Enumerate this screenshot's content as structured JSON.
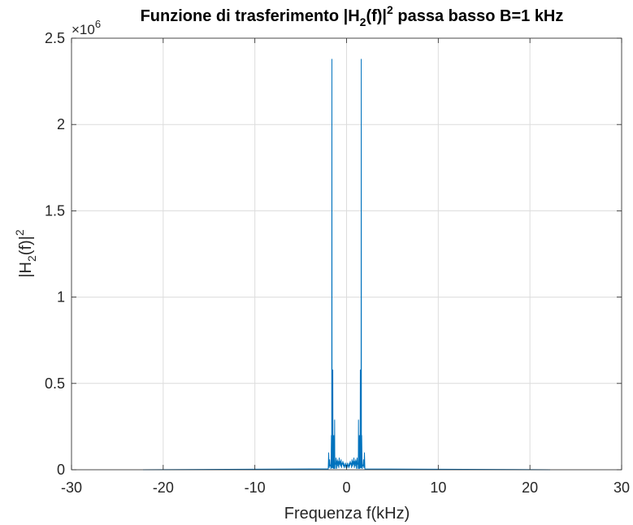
{
  "chart_data": {
    "type": "line",
    "title": {
      "prefix": "Funzione di trasferimento |H",
      "sub": "2",
      "middle": "(f)|",
      "sup": "2",
      "suffix": " passa basso B=1 kHz"
    },
    "xlabel": "Frequenza f(kHz)",
    "ylabel": {
      "prefix": "|H",
      "sub": "2",
      "middle": "(f)|",
      "sup": "2"
    },
    "xlim": [
      -30,
      30
    ],
    "ylim": [
      0,
      2500000
    ],
    "x_ticks": [
      -30,
      -20,
      -10,
      0,
      10,
      20,
      30
    ],
    "x_tick_labels": [
      "-30",
      "-20",
      "-10",
      "0",
      "10",
      "20",
      "30"
    ],
    "y_ticks": [
      0,
      500000,
      1000000,
      1500000,
      2000000,
      2500000
    ],
    "y_tick_labels": [
      "0",
      "0.5",
      "1",
      "1.5",
      "2",
      "2.5"
    ],
    "y_exponent": {
      "base": "×10",
      "power": "6"
    },
    "grid": true,
    "line_color": "#0072bd",
    "series": [
      {
        "x": [
          -22.2,
          -2.0,
          -1.95,
          -1.9,
          -1.85,
          -1.8,
          -1.75,
          -1.7,
          -1.65,
          -1.62,
          -1.6,
          -1.58,
          -1.55,
          -1.52,
          -1.5,
          -1.48,
          -1.45,
          -1.42,
          -1.4,
          -1.38,
          -1.35,
          -1.32,
          -1.3,
          -1.28,
          -1.25,
          -1.2,
          -1.15,
          -1.12,
          -1.1,
          -1.08,
          -1.05,
          -1.0,
          -0.95,
          -0.9,
          -0.85,
          -0.8,
          -0.75,
          -0.7,
          -0.65,
          -0.6,
          -0.55,
          -0.5,
          -0.45,
          -0.4,
          -0.35,
          -0.3,
          -0.25,
          -0.2,
          -0.15,
          -0.1,
          -0.05,
          0.0,
          0.05,
          0.1,
          0.15,
          0.2,
          0.25,
          0.3,
          0.35,
          0.4,
          0.45,
          0.5,
          0.55,
          0.6,
          0.65,
          0.7,
          0.75,
          0.8,
          0.85,
          0.9,
          0.95,
          1.0,
          1.05,
          1.08,
          1.1,
          1.12,
          1.15,
          1.2,
          1.25,
          1.28,
          1.3,
          1.32,
          1.35,
          1.38,
          1.4,
          1.42,
          1.45,
          1.48,
          1.5,
          1.52,
          1.55,
          1.58,
          1.6,
          1.62,
          1.65,
          1.7,
          1.75,
          1.8,
          1.85,
          1.9,
          1.95,
          2.0,
          22.2
        ],
        "y": [
          0,
          5000,
          100000,
          10000,
          60000,
          20000,
          30000,
          5000,
          200000,
          10000,
          2380000,
          15000,
          60000,
          8000,
          580000,
          12000,
          40000,
          6000,
          200000,
          9000,
          20000,
          5000,
          290000,
          7000,
          40000,
          30000,
          70000,
          5000,
          50000,
          8000,
          40000,
          60000,
          20000,
          50000,
          10000,
          70000,
          30000,
          50000,
          20000,
          60000,
          10000,
          40000,
          30000,
          50000,
          20000,
          40000,
          10000,
          30000,
          20000,
          40000,
          10000,
          30000,
          10000,
          40000,
          20000,
          30000,
          10000,
          40000,
          20000,
          50000,
          30000,
          40000,
          10000,
          60000,
          20000,
          50000,
          30000,
          70000,
          10000,
          50000,
          20000,
          60000,
          40000,
          8000,
          50000,
          5000,
          70000,
          30000,
          40000,
          7000,
          290000,
          5000,
          20000,
          9000,
          200000,
          6000,
          40000,
          12000,
          580000,
          8000,
          60000,
          15000,
          2380000,
          10000,
          200000,
          5000,
          30000,
          20000,
          60000,
          10000,
          100000,
          5000,
          0
        ]
      }
    ]
  }
}
